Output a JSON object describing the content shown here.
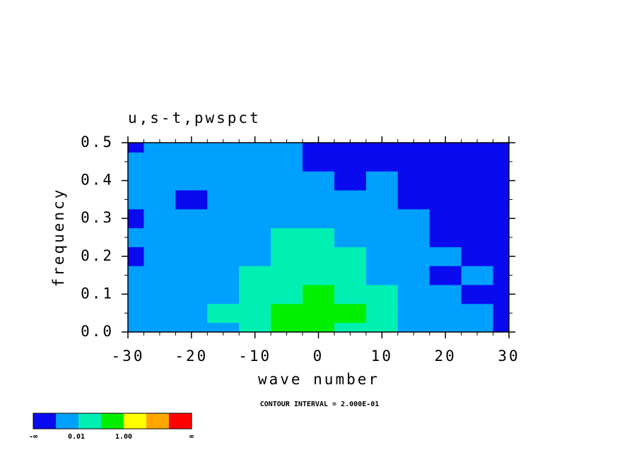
{
  "chart_data": {
    "type": "contour",
    "title": "u,s-t,pwspct",
    "x_label": "wave number",
    "y_label": "frequency",
    "annotation": "CONTOUR INTERVAL = 2.000E-01",
    "x": [
      -30,
      -25,
      -20,
      -15,
      -10,
      -5,
      0,
      5,
      10,
      15,
      20,
      25,
      30
    ],
    "y": [
      0,
      0.05,
      0.1,
      0.15,
      0.2,
      0.25,
      0.3,
      0.35,
      0.4,
      0.45,
      0.5
    ],
    "z": [
      [
        0.005,
        0.005,
        0.005,
        0.005,
        0.05,
        0.5,
        0.5,
        0.05,
        0.05,
        0.005,
        0.005,
        0.005,
        0.0005
      ],
      [
        0.005,
        0.005,
        0.005,
        0.05,
        0.05,
        0.5,
        0.5,
        0.5,
        0.05,
        0.005,
        0.005,
        0.005,
        0.0005
      ],
      [
        0.005,
        0.005,
        0.005,
        0.005,
        0.05,
        0.05,
        0.5,
        0.05,
        0.05,
        0.005,
        0.005,
        0.0005,
        0.0005
      ],
      [
        0.005,
        0.005,
        0.005,
        0.005,
        0.05,
        0.05,
        0.05,
        0.05,
        0.005,
        0.005,
        0.0005,
        0.005,
        0.0005
      ],
      [
        0.0005,
        0.005,
        0.005,
        0.005,
        0.005,
        0.05,
        0.05,
        0.05,
        0.005,
        0.005,
        0.005,
        0.0005,
        0.0005
      ],
      [
        0.005,
        0.005,
        0.005,
        0.005,
        0.005,
        0.05,
        0.05,
        0.005,
        0.005,
        0.005,
        0.0005,
        0.0005,
        0.0005
      ],
      [
        0.0005,
        0.005,
        0.005,
        0.005,
        0.005,
        0.005,
        0.005,
        0.005,
        0.005,
        0.005,
        0.0005,
        0.0005,
        0.0005
      ],
      [
        0.005,
        0.005,
        0.0005,
        0.005,
        0.005,
        0.005,
        0.005,
        0.005,
        0.005,
        0.0005,
        0.0005,
        0.0005,
        0.0005
      ],
      [
        0.005,
        0.005,
        0.005,
        0.005,
        0.005,
        0.005,
        0.005,
        0.0005,
        0.005,
        0.0005,
        0.0005,
        0.0005,
        0.0005
      ],
      [
        0.005,
        0.005,
        0.005,
        0.005,
        0.005,
        0.005,
        0.0005,
        0.0005,
        0.0005,
        0.0005,
        0.0005,
        0.0005,
        0.0005
      ],
      [
        0.0005,
        0.005,
        0.005,
        0.005,
        0.005,
        0.005,
        0.0005,
        0.0005,
        0.0005,
        0.0005,
        0.0005,
        0.0005,
        0.0005
      ]
    ],
    "levels": [
      0.001,
      0.01,
      0.1,
      1,
      10,
      100
    ],
    "colors": [
      "#0a0af0",
      "#00a0ff",
      "#00f0b4",
      "#00f000",
      "#ffff00",
      "#ffa500",
      "#ff0000"
    ],
    "colorbar_labels": [
      "-∞",
      "0.01",
      "1.00",
      "∞"
    ],
    "xlim": [
      -30,
      30
    ],
    "ylim": [
      0,
      0.5
    ],
    "xticks": [
      -30,
      -20,
      -10,
      0,
      10,
      20,
      30
    ],
    "yticks": [
      {
        "value": 0,
        "label": "0.0"
      },
      0.1,
      0.2,
      0.3,
      0.4,
      0.5
    ]
  }
}
